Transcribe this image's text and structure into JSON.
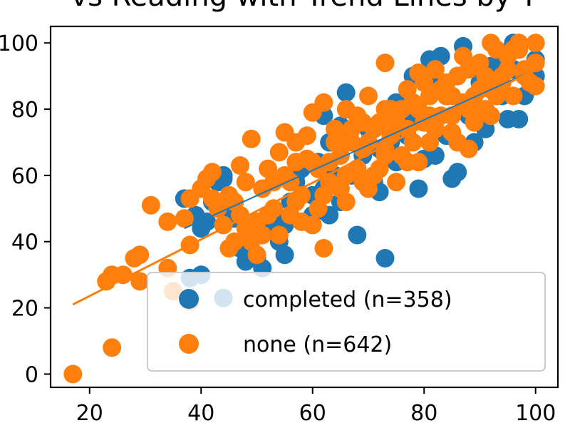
{
  "chart_data": {
    "type": "scatter",
    "title": "vs Reading with Trend Lines by T",
    "xlabel": "",
    "ylabel": "",
    "xlim": [
      13,
      104
    ],
    "ylim": [
      -4,
      105
    ],
    "x_ticks": [
      20,
      40,
      60,
      80,
      100
    ],
    "y_ticks": [
      0,
      20,
      40,
      60,
      80,
      100
    ],
    "x_tick_labels": [
      "20",
      "40",
      "60",
      "80",
      "100"
    ],
    "y_tick_labels": [
      "0",
      "20",
      "40",
      "60",
      "80",
      "100"
    ],
    "grid": false,
    "legend_position": "bottom-right",
    "series": [
      {
        "name": "completed (n=358)",
        "color": "#1f77b4",
        "trend": {
          "x": [
            37,
            100
          ],
          "y": [
            44,
            92
          ]
        },
        "points": [
          [
            37,
            53
          ],
          [
            39,
            48
          ],
          [
            40,
            44
          ],
          [
            41,
            46
          ],
          [
            42,
            52
          ],
          [
            43,
            58
          ],
          [
            44,
            59
          ],
          [
            44,
            60
          ],
          [
            45,
            50
          ],
          [
            46,
            47
          ],
          [
            47,
            38
          ],
          [
            48,
            34
          ],
          [
            49,
            42
          ],
          [
            50,
            35
          ],
          [
            51,
            32
          ],
          [
            52,
            45
          ],
          [
            53,
            48
          ],
          [
            54,
            40
          ],
          [
            55,
            36
          ],
          [
            56,
            52
          ],
          [
            57,
            58
          ],
          [
            58,
            62
          ],
          [
            59,
            46
          ],
          [
            60,
            54
          ],
          [
            61,
            64
          ],
          [
            62,
            56
          ],
          [
            63,
            48
          ],
          [
            64,
            60
          ],
          [
            65,
            52
          ],
          [
            66,
            85
          ],
          [
            66,
            70
          ],
          [
            67,
            60
          ],
          [
            68,
            42
          ],
          [
            69,
            66
          ],
          [
            70,
            74
          ],
          [
            71,
            58
          ],
          [
            72,
            55
          ],
          [
            73,
            35
          ],
          [
            74,
            70
          ],
          [
            75,
            64
          ],
          [
            76,
            80
          ],
          [
            77,
            72
          ],
          [
            78,
            90
          ],
          [
            79,
            56
          ],
          [
            80,
            76
          ],
          [
            81,
            95
          ],
          [
            82,
            66
          ],
          [
            83,
            96
          ],
          [
            84,
            84
          ],
          [
            85,
            59
          ],
          [
            86,
            61
          ],
          [
            87,
            99
          ],
          [
            88,
            82
          ],
          [
            89,
            70
          ],
          [
            90,
            88
          ],
          [
            91,
            74
          ],
          [
            92,
            86
          ],
          [
            93,
            90
          ],
          [
            94,
            84
          ],
          [
            95,
            77
          ],
          [
            96,
            100
          ],
          [
            96,
            92
          ],
          [
            97,
            77
          ],
          [
            97,
            100
          ],
          [
            98,
            84
          ],
          [
            99,
            88
          ],
          [
            100,
            95
          ],
          [
            100,
            90
          ],
          [
            44,
            23
          ],
          [
            38,
            29
          ],
          [
            40,
            30
          ],
          [
            55,
            45
          ],
          [
            57,
            60
          ],
          [
            60,
            48
          ],
          [
            63,
            70
          ],
          [
            65,
            75
          ],
          [
            68,
            62
          ],
          [
            70,
            56
          ],
          [
            72,
            68
          ],
          [
            75,
            82
          ],
          [
            78,
            76
          ],
          [
            80,
            65
          ],
          [
            82,
            88
          ],
          [
            84,
            72
          ],
          [
            86,
            90
          ],
          [
            88,
            78
          ],
          [
            90,
            80
          ],
          [
            92,
            93
          ],
          [
            94,
            96
          ],
          [
            62,
            78
          ]
        ]
      },
      {
        "name": "none (n=642)",
        "color": "#ff7f0e",
        "trend": {
          "x": [
            17,
            100
          ],
          "y": [
            21,
            92
          ]
        },
        "points": [
          [
            17,
            0
          ],
          [
            24,
            8
          ],
          [
            23,
            28
          ],
          [
            24,
            30
          ],
          [
            26,
            30
          ],
          [
            28,
            35
          ],
          [
            29,
            36
          ],
          [
            29,
            28
          ],
          [
            31,
            51
          ],
          [
            34,
            46
          ],
          [
            34,
            32
          ],
          [
            35,
            25
          ],
          [
            37,
            47
          ],
          [
            38,
            22
          ],
          [
            38,
            39
          ],
          [
            38,
            53
          ],
          [
            40,
            56
          ],
          [
            41,
            59
          ],
          [
            42,
            61
          ],
          [
            42,
            53
          ],
          [
            43,
            50
          ],
          [
            44,
            45
          ],
          [
            45,
            38
          ],
          [
            46,
            52
          ],
          [
            47,
            63
          ],
          [
            48,
            58
          ],
          [
            49,
            71
          ],
          [
            49,
            40
          ],
          [
            50,
            46
          ],
          [
            51,
            56
          ],
          [
            52,
            62
          ],
          [
            53,
            50
          ],
          [
            54,
            67
          ],
          [
            55,
            73
          ],
          [
            56,
            48
          ],
          [
            57,
            70
          ],
          [
            58,
            54
          ],
          [
            59,
            65
          ],
          [
            60,
            79
          ],
          [
            60,
            45
          ],
          [
            61,
            62
          ],
          [
            62,
            82
          ],
          [
            62,
            38
          ],
          [
            63,
            58
          ],
          [
            64,
            70
          ],
          [
            65,
            66
          ],
          [
            66,
            52
          ],
          [
            66,
            80
          ],
          [
            67,
            74
          ],
          [
            68,
            62
          ],
          [
            69,
            68
          ],
          [
            70,
            56
          ],
          [
            70,
            84
          ],
          [
            71,
            60
          ],
          [
            72,
            76
          ],
          [
            73,
            94
          ],
          [
            73,
            66
          ],
          [
            74,
            72
          ],
          [
            75,
            58
          ],
          [
            76,
            80
          ],
          [
            77,
            86
          ],
          [
            78,
            70
          ],
          [
            79,
            91
          ],
          [
            79,
            64
          ],
          [
            80,
            76
          ],
          [
            81,
            84
          ],
          [
            82,
            92
          ],
          [
            83,
            78
          ],
          [
            84,
            88
          ],
          [
            85,
            73
          ],
          [
            86,
            90
          ],
          [
            87,
            96
          ],
          [
            88,
            80
          ],
          [
            88,
            68
          ],
          [
            89,
            84
          ],
          [
            90,
            94
          ],
          [
            91,
            80
          ],
          [
            92,
            100
          ],
          [
            92,
            86
          ],
          [
            93,
            98
          ],
          [
            94,
            90
          ],
          [
            95,
            96
          ],
          [
            96,
            84
          ],
          [
            97,
            100
          ],
          [
            97,
            98
          ],
          [
            98,
            92
          ],
          [
            99,
            88
          ],
          [
            100,
            100
          ],
          [
            100,
            94
          ],
          [
            100,
            87
          ],
          [
            46,
            40
          ],
          [
            48,
            44
          ],
          [
            50,
            36
          ],
          [
            52,
            48
          ],
          [
            54,
            42
          ],
          [
            56,
            58
          ],
          [
            58,
            46
          ],
          [
            60,
            64
          ],
          [
            62,
            54
          ],
          [
            64,
            74
          ],
          [
            66,
            60
          ],
          [
            68,
            78
          ],
          [
            70,
            70
          ],
          [
            72,
            62
          ],
          [
            74,
            80
          ],
          [
            76,
            66
          ],
          [
            78,
            82
          ],
          [
            80,
            88
          ],
          [
            82,
            74
          ],
          [
            84,
            84
          ],
          [
            86,
            70
          ],
          [
            88,
            92
          ],
          [
            90,
            86
          ],
          [
            92,
            78
          ],
          [
            94,
            88
          ],
          [
            96,
            98
          ],
          [
            98,
            90
          ],
          [
            55,
            60
          ],
          [
            57,
            52
          ],
          [
            59,
            72
          ],
          [
            63,
            64
          ],
          [
            65,
            56
          ],
          [
            67,
            70
          ],
          [
            69,
            58
          ],
          [
            71,
            74
          ],
          [
            73,
            68
          ],
          [
            75,
            76
          ],
          [
            77,
            64
          ],
          [
            79,
            80
          ],
          [
            81,
            70
          ],
          [
            83,
            86
          ],
          [
            85,
            78
          ],
          [
            87,
            82
          ],
          [
            89,
            76
          ],
          [
            91,
            90
          ],
          [
            93,
            84
          ],
          [
            95,
            92
          ],
          [
            45,
            54
          ],
          [
            47,
            48
          ],
          [
            51,
            42
          ],
          [
            53,
            58
          ],
          [
            57,
            64
          ],
          [
            61,
            50
          ],
          [
            65,
            70
          ],
          [
            69,
            76
          ],
          [
            73,
            80
          ],
          [
            77,
            74
          ],
          [
            81,
            78
          ],
          [
            85,
            84
          ]
        ]
      }
    ]
  }
}
